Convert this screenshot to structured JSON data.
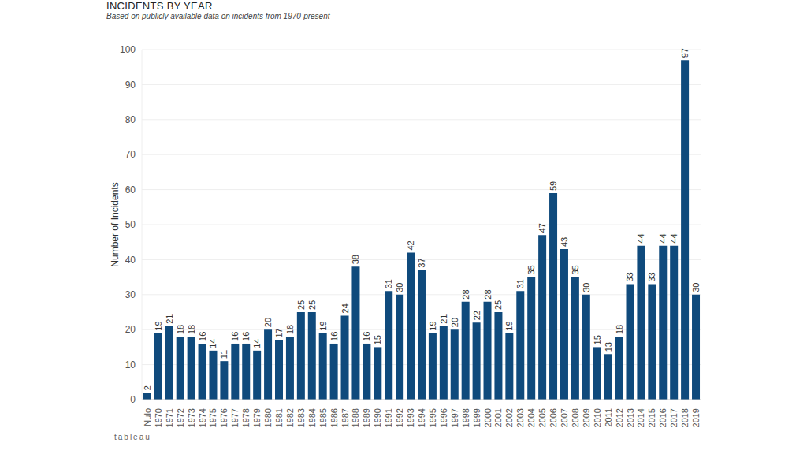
{
  "chart_data": {
    "type": "bar",
    "title": "INCIDENTS BY YEAR",
    "subtitle": "Based on publicly available data on incidents from 1970-present",
    "y_label": "Number of Incidents",
    "footer": "tableau",
    "categories": [
      "Nulo",
      "1970",
      "1971",
      "1972",
      "1973",
      "1974",
      "1975",
      "1976",
      "1977",
      "1978",
      "1979",
      "1980",
      "1981",
      "1982",
      "1983",
      "1984",
      "1985",
      "1986",
      "1987",
      "1988",
      "1989",
      "1990",
      "1991",
      "1992",
      "1993",
      "1994",
      "1995",
      "1996",
      "1997",
      "1998",
      "1999",
      "2000",
      "2001",
      "2002",
      "2003",
      "2004",
      "2005",
      "2006",
      "2007",
      "2008",
      "2009",
      "2010",
      "2011",
      "2012",
      "2013",
      "2014",
      "2015",
      "2016",
      "2017",
      "2018",
      "2019"
    ],
    "values": [
      2,
      19,
      21,
      18,
      18,
      16,
      14,
      11,
      16,
      16,
      14,
      20,
      17,
      18,
      25,
      25,
      19,
      16,
      24,
      38,
      16,
      15,
      31,
      30,
      42,
      37,
      19,
      21,
      20,
      28,
      22,
      28,
      25,
      19,
      31,
      35,
      47,
      59,
      43,
      35,
      30,
      15,
      13,
      18,
      33,
      44,
      33,
      44,
      44,
      97,
      30
    ],
    "color": "#0f4a7c",
    "ylim": [
      0,
      100
    ],
    "yticks": [
      0,
      10,
      20,
      30,
      40,
      50,
      60,
      70,
      80,
      90,
      100
    ],
    "grid": true,
    "data_labels": true
  }
}
